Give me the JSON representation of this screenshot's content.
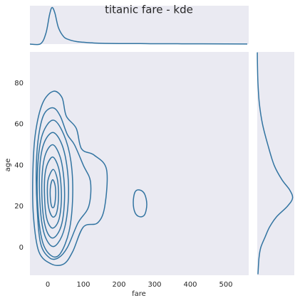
{
  "chart_data": {
    "type": "kde2d",
    "title": "titanic fare - kde",
    "xlabel": "fare",
    "ylabel": "age",
    "color": "#3274a1",
    "xlim": [
      -50,
      564
    ],
    "ylim": [
      -13.5,
      95.2
    ],
    "xticks": [
      0,
      100,
      200,
      300,
      400,
      500
    ],
    "yticks": [
      0,
      20,
      40,
      60,
      80
    ],
    "contours": [
      {
        "x": [
          15,
          40,
          52,
          80,
          95,
          130,
          165,
          160,
          140,
          100,
          70,
          45,
          10,
          -25,
          -40,
          -42,
          -35,
          -15
        ],
        "y": [
          76,
          73,
          64,
          58,
          48,
          45,
          38,
          20,
          12,
          10,
          -2,
          -8,
          -8,
          -2,
          15,
          35,
          55,
          70
        ]
      },
      {
        "x": [
          15,
          35,
          55,
          75,
          100,
          120,
          115,
          85,
          55,
          30,
          5,
          -20,
          -30,
          -32,
          -25,
          -10
        ],
        "y": [
          68,
          64,
          55,
          50,
          40,
          32,
          20,
          12,
          0,
          -5,
          -5,
          2,
          20,
          40,
          55,
          65
        ]
      },
      {
        "x": [
          15,
          45,
          65,
          70,
          60,
          35,
          10,
          -15,
          -28,
          -28,
          -15
        ],
        "y": [
          62,
          55,
          42,
          25,
          8,
          -3,
          -4,
          3,
          20,
          40,
          55
        ]
      },
      {
        "x": [
          15,
          40,
          55,
          58,
          48,
          28,
          8,
          -12,
          -22,
          -22,
          -10
        ],
        "y": [
          56,
          50,
          38,
          24,
          10,
          2,
          1,
          8,
          22,
          40,
          51
        ]
      },
      {
        "x": [
          15,
          35,
          45,
          47,
          40,
          25,
          8,
          -8,
          -16,
          -15,
          -5
        ],
        "y": [
          50,
          44,
          34,
          23,
          12,
          6,
          5,
          11,
          23,
          37,
          46
        ]
      },
      {
        "x": [
          15,
          30,
          37,
          38,
          32,
          20,
          8,
          -4,
          -9,
          -8,
          0
        ],
        "y": [
          44,
          39,
          31,
          22,
          14,
          10,
          10,
          15,
          25,
          35,
          41
        ]
      },
      {
        "x": [
          15,
          26,
          30,
          29,
          23,
          13,
          3,
          -1,
          1
        ],
        "y": [
          38,
          34,
          28,
          21,
          16,
          15,
          19,
          26,
          33
        ]
      },
      {
        "x": [
          14,
          21,
          22,
          18,
          11,
          7,
          8
        ],
        "y": [
          33,
          30,
          25,
          20,
          20,
          25,
          30
        ]
      },
      {
        "x": [
          258,
          272,
          278,
          272,
          258,
          245,
          240,
          245
        ],
        "y": [
          28,
          26,
          21,
          16,
          15,
          17,
          22,
          27
        ]
      }
    ],
    "top_kde": {
      "x": [
        -50,
        -20,
        -5,
        5,
        12,
        20,
        30,
        45,
        60,
        80,
        100,
        130,
        160,
        200,
        260,
        300,
        400,
        500,
        560
      ],
      "values": [
        0,
        0.01,
        0.3,
        0.8,
        1,
        0.85,
        0.45,
        0.2,
        0.12,
        0.07,
        0.05,
        0.03,
        0.02,
        0.015,
        0.015,
        0.01,
        0.008,
        0.006,
        0.003
      ],
      "ylim": [
        0,
        1.05
      ]
    },
    "right_kde": {
      "y": [
        -13,
        -5,
        0,
        5,
        10,
        15,
        20,
        24,
        28,
        33,
        40,
        50,
        60,
        70,
        80,
        90,
        95
      ],
      "values": [
        0.02,
        0.05,
        0.1,
        0.22,
        0.35,
        0.55,
        0.85,
        1,
        0.92,
        0.7,
        0.48,
        0.3,
        0.15,
        0.06,
        0.02,
        0.005,
        0.002
      ],
      "xlim": [
        0,
        1.05
      ]
    }
  }
}
